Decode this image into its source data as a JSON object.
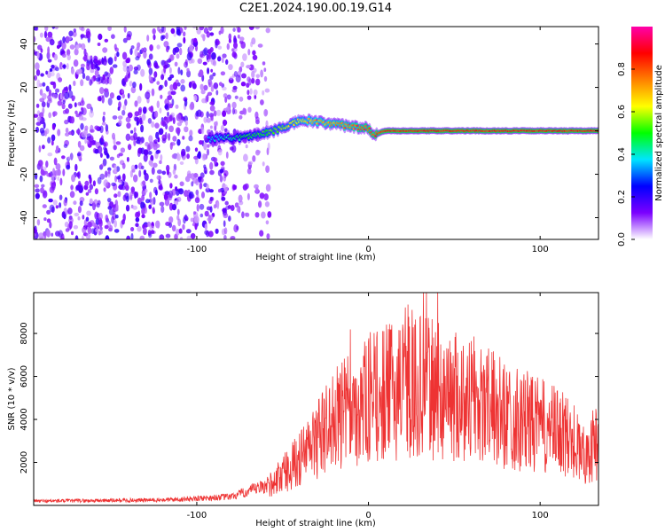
{
  "page": {
    "title": "C2E1.2024.190.00.19.G14"
  },
  "chart_data": [
    {
      "type": "heatmap",
      "title": "C2E1.2024.190.00.19.G14",
      "xlabel": "Height of straight line (km)",
      "ylabel": "Frequency (Hz)",
      "xlim": [
        -195,
        134
      ],
      "ylim": [
        -50,
        48
      ],
      "xticks": [
        -100,
        0,
        100
      ],
      "yticks": [
        -40,
        -20,
        0,
        20,
        40
      ],
      "colorbar": {
        "label": "Normalized spectral amplitude",
        "range": [
          0,
          1
        ],
        "ticks": [
          "0.0",
          "0.2",
          "0.4",
          "0.6",
          "0.8"
        ],
        "colors": [
          "#ffffff",
          "#7b00ff",
          "#0000ff",
          "#00e5ff",
          "#00ff00",
          "#ffff00",
          "#ff8000",
          "#ff0000",
          "#ff00aa"
        ]
      },
      "ridge": {
        "description_free": true,
        "x": [
          -93,
          -85,
          -75,
          -65,
          -55,
          -45,
          -38,
          -30,
          -20,
          -10,
          0,
          3,
          10,
          30,
          50,
          80,
          85,
          100,
          134
        ],
        "freq": [
          -4,
          -3,
          -3,
          -2,
          0,
          3,
          5,
          4,
          3,
          2,
          1,
          -2,
          0,
          0,
          0,
          0,
          0,
          0,
          0
        ],
        "amplitude": [
          0.35,
          0.4,
          0.45,
          0.5,
          0.55,
          0.6,
          0.65,
          0.7,
          0.72,
          0.75,
          0.8,
          0.8,
          0.85,
          0.85,
          0.85,
          0.85,
          0.85,
          0.85,
          0.85
        ]
      },
      "noise_region_x": [
        -195,
        -65
      ]
    },
    {
      "type": "line",
      "xlabel": "Height of straight line (km)",
      "ylabel": "SNR (10 * v/v)",
      "xlim": [
        -195,
        134
      ],
      "ylim": [
        0,
        9900
      ],
      "xticks": [
        -100,
        0,
        100
      ],
      "yticks": [
        2000,
        4000,
        6000,
        8000
      ],
      "color": "#ee3333",
      "envelope": {
        "x": [
          -195,
          -120,
          -80,
          -60,
          -50,
          -40,
          -30,
          -20,
          -10,
          0,
          10,
          20,
          30,
          40,
          50,
          60,
          70,
          80,
          90,
          100,
          110,
          120,
          125,
          130,
          134
        ],
        "y": [
          200,
          250,
          400,
          900,
          1600,
          2400,
          3400,
          4400,
          5000,
          5400,
          5800,
          6000,
          6200,
          5900,
          5700,
          5400,
          5100,
          4700,
          4400,
          4100,
          3800,
          3300,
          2600,
          3000,
          3400
        ]
      },
      "peak": {
        "x": 32,
        "y": 9900
      }
    }
  ]
}
